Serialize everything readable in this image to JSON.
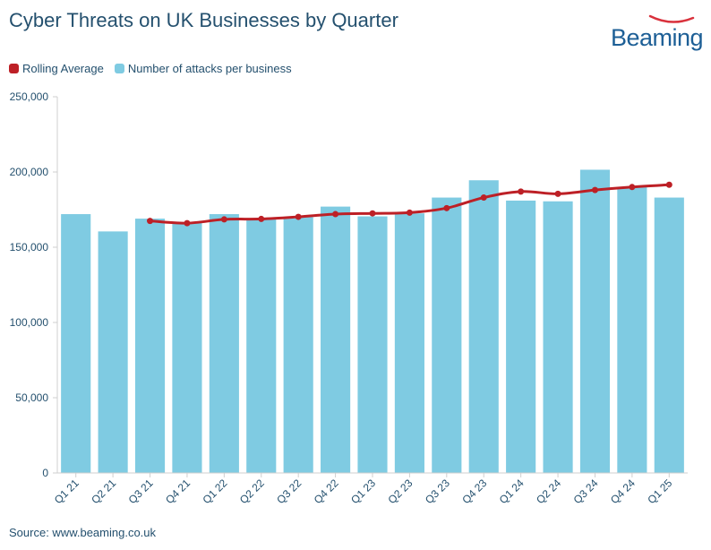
{
  "title": "Cyber Threats on UK Businesses by Quarter",
  "logo": {
    "text": "Beaming",
    "color": "#1d5f96",
    "swoosh_color": "#d9313c"
  },
  "source": "Source: www.beaming.co.uk",
  "colors": {
    "bar": "#7fcbe2",
    "line": "#bd2026",
    "text": "#24506e",
    "axis": "#cfcfcf"
  },
  "chart_data": {
    "type": "bar",
    "categories": [
      "Q1 21",
      "Q2 21",
      "Q3 21",
      "Q4 21",
      "Q1 22",
      "Q2 22",
      "Q3 22",
      "Q4 22",
      "Q1 23",
      "Q2 23",
      "Q3 23",
      "Q4 23",
      "Q1 24",
      "Q2 24",
      "Q3 24",
      "Q4 24",
      "Q1 25"
    ],
    "series": [
      {
        "name": "Number of attacks per business",
        "type": "bar",
        "values": [
          172000,
          160500,
          169000,
          166500,
          172000,
          169000,
          170000,
          177000,
          170500,
          172500,
          183000,
          194500,
          181000,
          180500,
          201500,
          190000,
          183000
        ]
      },
      {
        "name": "Rolling Average",
        "type": "line",
        "values": [
          null,
          null,
          167500,
          166000,
          168500,
          168800,
          170200,
          172000,
          172500,
          173000,
          176000,
          183000,
          187000,
          185500,
          188000,
          190000,
          191500
        ]
      }
    ],
    "legend": [
      "Rolling Average",
      "Number of attacks per business"
    ],
    "legend_position": "top-left",
    "ylim": [
      0,
      250000
    ],
    "yticks": [
      "0",
      "50,000",
      "100,000",
      "150,000",
      "200,000",
      "250,000"
    ],
    "xlabel": "",
    "ylabel": "",
    "grid": false
  }
}
